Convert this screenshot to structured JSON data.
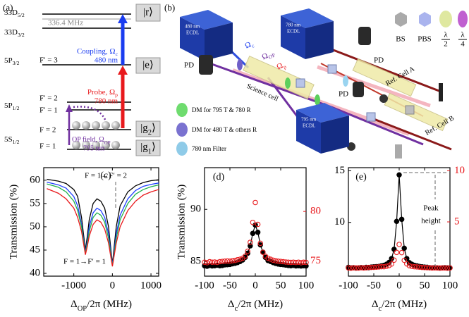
{
  "panel_a": {
    "label": "(a)",
    "d52": [
      "33D",
      "5/2"
    ],
    "split": "336.4 MHz",
    "d32": [
      "33D",
      "3/2"
    ],
    "r": "|r⟩",
    "p32": [
      "5P",
      "3/2"
    ],
    "f3p": "F′ = 3",
    "e": "|e⟩",
    "p12": [
      "5P",
      "1/2"
    ],
    "f2p": "F′ = 2",
    "f1p": "F′ = 1",
    "s12": [
      "5S",
      "1/2"
    ],
    "f2": "F = 2",
    "f1": "F = 1",
    "g2": [
      "|g",
      "2",
      "⟩"
    ],
    "g1": [
      "|g",
      "1",
      "⟩"
    ],
    "coupling": [
      "Coupling, Ω",
      "c"
    ],
    "coupling_nm": "480 nm",
    "probe": [
      "Probe, Ω",
      "p"
    ],
    "probe_nm": "780 nm",
    "op": [
      "OP field, Ω",
      "OP"
    ],
    "op_nm": "795 nm"
  },
  "panel_b": {
    "label": "(b)",
    "lasers": [
      {
        "wavelength": "480 nm",
        "name": "ECDL"
      },
      {
        "wavelength": "780 nm",
        "name": "ECDL"
      },
      {
        "wavelength": "795 nm",
        "name": "ECDL"
      }
    ],
    "legend": {
      "bs": "BS",
      "pbs": "PBS",
      "half": {
        "top": "λ",
        "bottom": "2"
      },
      "quarter": {
        "top": "λ",
        "bottom": "4"
      }
    },
    "pd": [
      "PD",
      "PD",
      "PD"
    ],
    "omega_c": [
      "Ω",
      "c"
    ],
    "omega_op": [
      "Ω",
      "OP"
    ],
    "omega_p": [
      "Ω",
      "p"
    ],
    "science": "Science cell",
    "ref_a": "Ref. Cell A",
    "ref_b": "Ref. Cell B",
    "dm": [
      "DM for 795 T & 780 R",
      "DM for 480 T & others R",
      "780 nm Filter"
    ]
  },
  "chart_data": [
    {
      "type": "line",
      "label": "(c)",
      "x_label": [
        "Δ",
        "OP",
        "/2π (MHz)"
      ],
      "y_label": "Transmission (%)",
      "xlim": [
        -1780,
        1200
      ],
      "xticks": [
        -1000,
        0,
        1000
      ],
      "ylim": [
        39.4,
        62.7
      ],
      "yticks": [
        40,
        45,
        50,
        55,
        60
      ],
      "x": [
        -1700,
        -1400,
        -1200,
        -1000,
        -900,
        -800,
        -750,
        -700,
        -650,
        -600,
        -500,
        -400,
        -300,
        -200,
        -100,
        -50,
        0,
        50,
        100,
        200,
        400,
        600,
        800,
        1000,
        1200
      ],
      "series": [
        {
          "color": "#000000",
          "values": [
            60.2,
            59.8,
            59.3,
            58,
            56.5,
            52,
            48.5,
            45,
            48,
            51.5,
            55,
            56,
            55.5,
            54,
            50,
            46,
            42,
            46,
            50,
            54.5,
            57.5,
            58.8,
            59.5,
            59.9,
            60.1
          ]
        },
        {
          "color": "#1f3fff",
          "values": [
            59.6,
            59,
            58.3,
            56.5,
            54.5,
            50.5,
            47.5,
            44.5,
            47,
            50,
            53,
            54,
            53.5,
            52,
            48.5,
            45,
            41.8,
            45,
            48.5,
            52.5,
            56,
            57.8,
            58.7,
            59.1,
            59.4
          ]
        },
        {
          "color": "#22b14c",
          "values": [
            59.2,
            58.5,
            57.5,
            55.5,
            53.5,
            50,
            47,
            44.2,
            46.5,
            49,
            52,
            53,
            52.5,
            51,
            47.5,
            44.5,
            41.6,
            44.5,
            47.5,
            51.5,
            55,
            57,
            58,
            58.6,
            59
          ]
        },
        {
          "color": "#e8191c",
          "values": [
            58.2,
            57.2,
            56,
            54,
            52,
            49,
            46.5,
            44,
            45.8,
            48,
            50.5,
            51.5,
            51,
            49.5,
            46.5,
            44,
            41.5,
            44,
            46.5,
            50,
            53.5,
            55.5,
            56.8,
            57.5,
            58
          ]
        }
      ],
      "annotations": [
        "F = 1→F′ = 2",
        "F = 1→F′ = 1"
      ]
    },
    {
      "type": "scatter",
      "label": "(d)",
      "x_label": [
        "Δ",
        "c",
        "/2π (MHz)"
      ],
      "y_label": "Transmission (%)",
      "xlim": [
        -100,
        100
      ],
      "xticks": [
        -100,
        -50,
        0,
        50,
        100
      ],
      "ylim": [
        83.6,
        94
      ],
      "yticks": [
        85,
        90
      ],
      "y2lim": [
        73.5,
        84.4
      ],
      "y2ticks": [
        75,
        80
      ],
      "y2_color": "#e8191c",
      "x": [
        -100,
        -95,
        -90,
        -85,
        -80,
        -75,
        -70,
        -65,
        -60,
        -55,
        -50,
        -45,
        -40,
        -35,
        -30,
        -25,
        -20,
        -15,
        -10,
        -5,
        0,
        5,
        10,
        15,
        20,
        25,
        30,
        35,
        40,
        45,
        50,
        55,
        60,
        65,
        70,
        75,
        80,
        85,
        90,
        95,
        100
      ],
      "series": [
        {
          "color": "#000000",
          "marker": "filled",
          "line": true,
          "values": [
            84.6,
            84.55,
            84.62,
            84.58,
            84.6,
            84.65,
            84.6,
            84.62,
            84.68,
            84.7,
            84.72,
            84.78,
            84.83,
            84.9,
            85.0,
            85.15,
            85.4,
            85.8,
            86.5,
            87.7,
            88.5,
            87.8,
            86.6,
            85.9,
            85.4,
            85.1,
            85.0,
            84.9,
            84.82,
            84.76,
            84.72,
            84.7,
            84.66,
            84.62,
            84.6,
            84.63,
            84.58,
            84.6,
            84.57,
            84.6,
            84.58
          ]
        },
        {
          "color": "#e8191c",
          "marker": "open",
          "axis": "y2",
          "values": [
            74.9,
            74.85,
            74.95,
            74.9,
            74.92,
            74.88,
            74.95,
            74.98,
            75.0,
            75.02,
            75.0,
            75.05,
            75.08,
            75.15,
            75.2,
            75.3,
            75.5,
            76.0,
            76.9,
            78.9,
            80.9,
            78.7,
            76.8,
            75.9,
            75.5,
            75.3,
            75.2,
            75.1,
            75.05,
            75.0,
            74.98,
            74.95,
            74.92,
            74.9,
            74.88,
            74.9,
            74.87,
            74.9,
            74.85,
            74.9,
            74.88
          ]
        }
      ]
    },
    {
      "type": "scatter",
      "label": "(e)",
      "x_label": [
        "Δ",
        "c",
        "/2π (MHz)"
      ],
      "xlim": [
        -100,
        100
      ],
      "xticks": [
        -100,
        -50,
        0,
        50,
        100
      ],
      "ylim": [
        4.8,
        15.3
      ],
      "yticks": [
        10,
        15
      ],
      "y2lim": [
        -0.3,
        10.3
      ],
      "y2ticks": [
        5,
        10
      ],
      "y2_color": "#e8191c",
      "x": [
        -100,
        -95,
        -90,
        -85,
        -80,
        -75,
        -70,
        -65,
        -60,
        -55,
        -50,
        -45,
        -40,
        -35,
        -30,
        -25,
        -20,
        -15,
        -10,
        -5,
        0,
        5,
        10,
        15,
        20,
        25,
        30,
        35,
        40,
        45,
        50,
        55,
        60,
        65,
        70,
        75,
        80,
        85,
        90,
        95,
        100
      ],
      "series": [
        {
          "color": "#000000",
          "marker": "filled",
          "line": true,
          "values": [
            5.65,
            5.6,
            5.62,
            5.58,
            5.6,
            5.63,
            5.6,
            5.65,
            5.62,
            5.68,
            5.7,
            5.72,
            5.74,
            5.8,
            5.85,
            5.95,
            6.13,
            6.5,
            7.4,
            10.1,
            14.6,
            10.3,
            7.5,
            6.5,
            6.1,
            5.95,
            5.85,
            5.8,
            5.74,
            5.7,
            5.68,
            5.66,
            5.62,
            5.6,
            5.63,
            5.6,
            5.58,
            5.6,
            5.62,
            5.6,
            5.6
          ]
        },
        {
          "color": "#e8191c",
          "marker": "open",
          "axis": "y2",
          "values": [
            0.5,
            0.48,
            0.52,
            0.5,
            0.49,
            0.53,
            0.5,
            0.52,
            0.55,
            0.55,
            0.56,
            0.58,
            0.6,
            0.62,
            0.62,
            0.66,
            0.73,
            0.89,
            1.27,
            2.02,
            2.8,
            2.0,
            1.25,
            0.9,
            0.72,
            0.65,
            0.62,
            0.6,
            0.58,
            0.55,
            0.54,
            0.53,
            0.52,
            0.5,
            0.51,
            0.5,
            0.49,
            0.5,
            0.5,
            0.48,
            0.5
          ]
        }
      ],
      "annotations": [
        "Peak",
        "height"
      ]
    }
  ]
}
